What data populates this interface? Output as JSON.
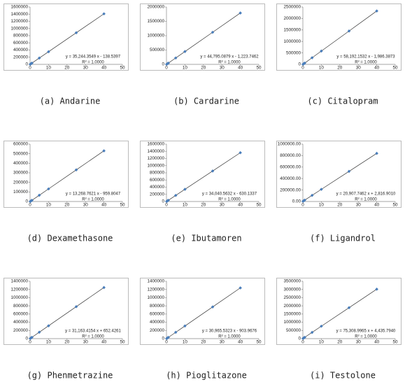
{
  "chart_data": [
    {
      "type": "scatter",
      "caption": "(a)  Andarine",
      "x": [
        0.1,
        0.5,
        1,
        5,
        10,
        25,
        40
      ],
      "values": [
        3400,
        17500,
        35100,
        176100,
        352300,
        881000,
        1409600
      ],
      "color": "#4a7ebb",
      "trendline": true,
      "xlim": [
        0,
        50
      ],
      "xticks": [
        0,
        10,
        20,
        30,
        40,
        50
      ],
      "ylim": [
        0,
        1600000
      ],
      "yticks": [
        0,
        200000,
        400000,
        600000,
        800000,
        1000000,
        1200000,
        1400000,
        1600000
      ],
      "annotations": [
        "y = 35,244.3549 x - 138.5397",
        "R² = 1.0000"
      ]
    },
    {
      "type": "scatter",
      "caption": "(b)  Cardarine",
      "x": [
        0.1,
        0.5,
        1,
        5,
        10,
        25,
        40
      ],
      "values": [
        3300,
        21200,
        43600,
        222800,
        446700,
        1118700,
        1790600
      ],
      "color": "#4a7ebb",
      "trendline": true,
      "xlim": [
        0,
        50
      ],
      "xticks": [
        0,
        10,
        20,
        30,
        40,
        50
      ],
      "ylim": [
        0,
        2000000
      ],
      "yticks": [
        0,
        500000,
        1000000,
        1500000,
        2000000
      ],
      "annotations": [
        "y = 44,795.0879 x - 1,223.7462",
        "R² = 1.0000"
      ]
    },
    {
      "type": "scatter",
      "caption": "(c)  Citalopram",
      "x": [
        0.1,
        0.5,
        1,
        5,
        10,
        25,
        40
      ],
      "values": [
        3800,
        27100,
        56200,
        289000,
        579900,
        1452800,
        2325700
      ],
      "color": "#4a7ebb",
      "trendline": true,
      "xlim": [
        0,
        50
      ],
      "xticks": [
        0,
        10,
        20,
        30,
        40,
        50
      ],
      "ylim": [
        0,
        2500000
      ],
      "yticks": [
        0,
        500000,
        1000000,
        1500000,
        2000000,
        2500000
      ],
      "annotations": [
        "y = 58,192.1532 x - 1,986.3873",
        "R² = 1.0000"
      ]
    },
    {
      "type": "scatter",
      "caption": "(d)  Dexamethasone",
      "x": [
        0.1,
        0.5,
        1,
        5,
        10,
        25,
        40
      ],
      "values": [
        400,
        5700,
        12300,
        65400,
        131700,
        330800,
        529800
      ],
      "color": "#4a7ebb",
      "trendline": true,
      "xlim": [
        0,
        50
      ],
      "xticks": [
        0,
        10,
        20,
        30,
        40,
        50
      ],
      "ylim": [
        0,
        600000
      ],
      "yticks": [
        0,
        100000,
        200000,
        300000,
        400000,
        500000,
        600000
      ],
      "annotations": [
        "y = 13,268.7621 x - 959.8047",
        "R² = 1.0000"
      ]
    },
    {
      "type": "scatter",
      "caption": "(e)  Ibutamoren",
      "x": [
        0.1,
        0.5,
        1,
        5,
        10,
        25,
        40
      ],
      "values": [
        2800,
        16400,
        33400,
        169600,
        339800,
        850400,
        1361000
      ],
      "color": "#4a7ebb",
      "trendline": true,
      "xlim": [
        0,
        50
      ],
      "xticks": [
        0,
        10,
        20,
        30,
        40,
        50
      ],
      "ylim": [
        0,
        1600000
      ],
      "yticks": [
        0,
        200000,
        400000,
        600000,
        800000,
        1000000,
        1200000,
        1400000,
        1600000
      ],
      "annotations": [
        "y = 34,040.5632 x - 630.1337",
        "R² = 1.0000"
      ]
    },
    {
      "type": "scatter",
      "caption": "(f)  Ligandrol",
      "x": [
        0.1,
        0.5,
        1,
        5,
        10,
        25,
        40
      ],
      "values": [
        4900,
        13300,
        23700,
        107400,
        211900,
        525500,
        839100
      ],
      "color": "#4a7ebb",
      "trendline": true,
      "xlim": [
        0,
        50
      ],
      "xticks": [
        0,
        10,
        20,
        30,
        40,
        50
      ],
      "ylim": [
        0,
        1000000
      ],
      "yticks": [
        {
          "value": 0,
          "label": "0.00"
        },
        {
          "value": 200000,
          "label": "200000.00"
        },
        {
          "value": 400000,
          "label": "400000.00"
        },
        {
          "value": 600000,
          "label": "600000.00"
        },
        {
          "value": 800000,
          "label": "800000.00"
        },
        {
          "value": 1000000,
          "label": "1000000.00"
        }
      ],
      "annotations": [
        "y = 20,907.7462 x + 2,816.9010",
        "R² = 1.0000"
      ]
    },
    {
      "type": "scatter",
      "caption": "(g)  Phenmetrazine",
      "x": [
        0.1,
        0.5,
        1,
        5,
        10,
        25,
        40
      ],
      "values": [
        3800,
        16200,
        31800,
        156500,
        312300,
        779700,
        1247200
      ],
      "color": "#4a7ebb",
      "trendline": true,
      "xlim": [
        0,
        50
      ],
      "xticks": [
        0,
        10,
        20,
        30,
        40,
        50
      ],
      "ylim": [
        0,
        1400000
      ],
      "yticks": [
        0,
        200000,
        400000,
        600000,
        800000,
        1000000,
        1200000,
        1400000
      ],
      "annotations": [
        "y = 31,163.4154 x + 652.4261",
        "R² = 1.0000"
      ]
    },
    {
      "type": "scatter",
      "caption": "(h)  Pioglitazone",
      "x": [
        0.1,
        0.5,
        1,
        5,
        10,
        25,
        40
      ],
      "values": [
        2200,
        14600,
        30100,
        153900,
        308800,
        773200,
        1237700
      ],
      "color": "#4a7ebb",
      "trendline": true,
      "xlim": [
        0,
        50
      ],
      "xticks": [
        0,
        10,
        20,
        30,
        40,
        50
      ],
      "ylim": [
        0,
        1400000
      ],
      "yticks": [
        0,
        200000,
        400000,
        600000,
        800000,
        1000000,
        1200000,
        1400000
      ],
      "annotations": [
        "y = 30,965.5323 x - 903.9676",
        "R² = 1.0000"
      ]
    },
    {
      "type": "scatter",
      "caption": "(i)  Testolone",
      "x": [
        0.1,
        0.5,
        1,
        5,
        10,
        25,
        40
      ],
      "values": [
        12000,
        42100,
        79700,
        381000,
        757500,
        1887200,
        3016800
      ],
      "color": "#4a7ebb",
      "trendline": true,
      "xlim": [
        0,
        50
      ],
      "xticks": [
        0,
        10,
        20,
        30,
        40,
        50
      ],
      "ylim": [
        0,
        3500000
      ],
      "yticks": [
        0,
        500000,
        1000000,
        1500000,
        2000000,
        2500000,
        3000000,
        3500000
      ],
      "annotations": [
        "y = 75,308.9965 x + 4,435.7940",
        "R² = 1.0000"
      ]
    }
  ]
}
